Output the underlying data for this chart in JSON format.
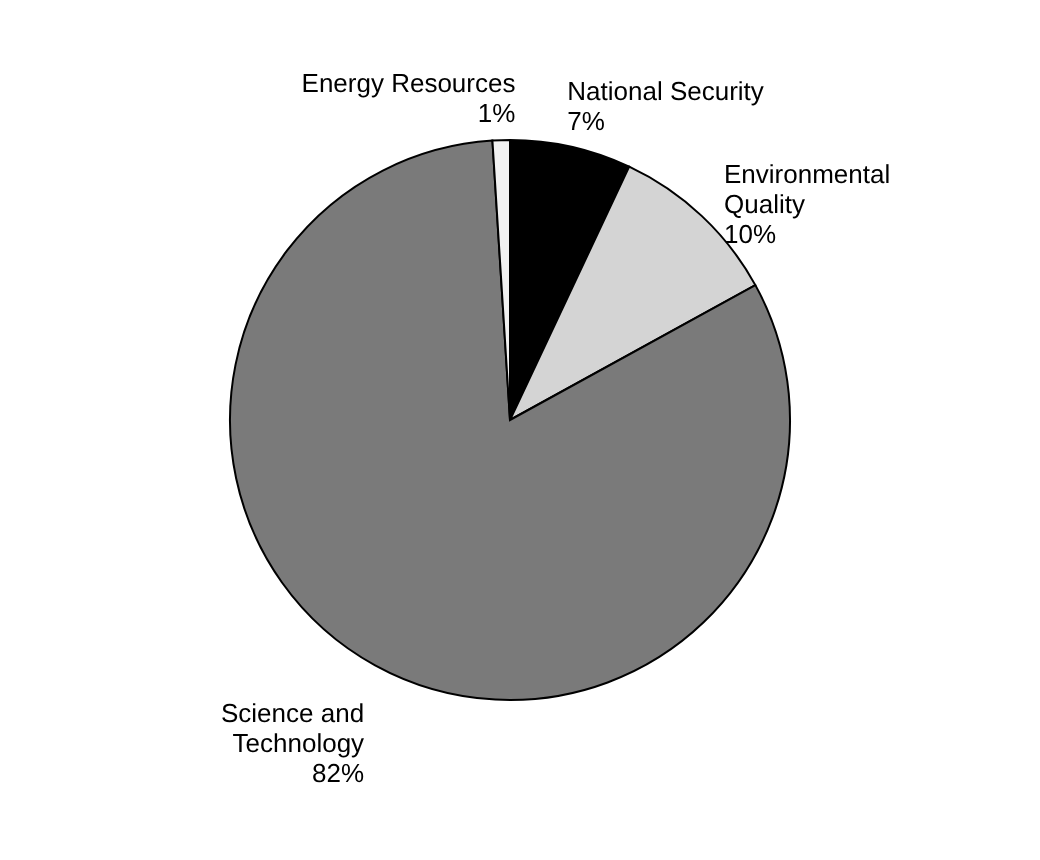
{
  "chart_data": {
    "type": "pie",
    "categories": [
      "National Security",
      "Environmental Quality",
      "Science and Technology",
      "Energy Resources"
    ],
    "values": [
      7,
      10,
      82,
      1
    ],
    "value_labels": [
      "7%",
      "10%",
      "82%",
      "1%"
    ],
    "colors": [
      "#000000",
      "#d4d4d4",
      "#7a7a7a",
      "#f2f2f2"
    ],
    "legend": false
  }
}
